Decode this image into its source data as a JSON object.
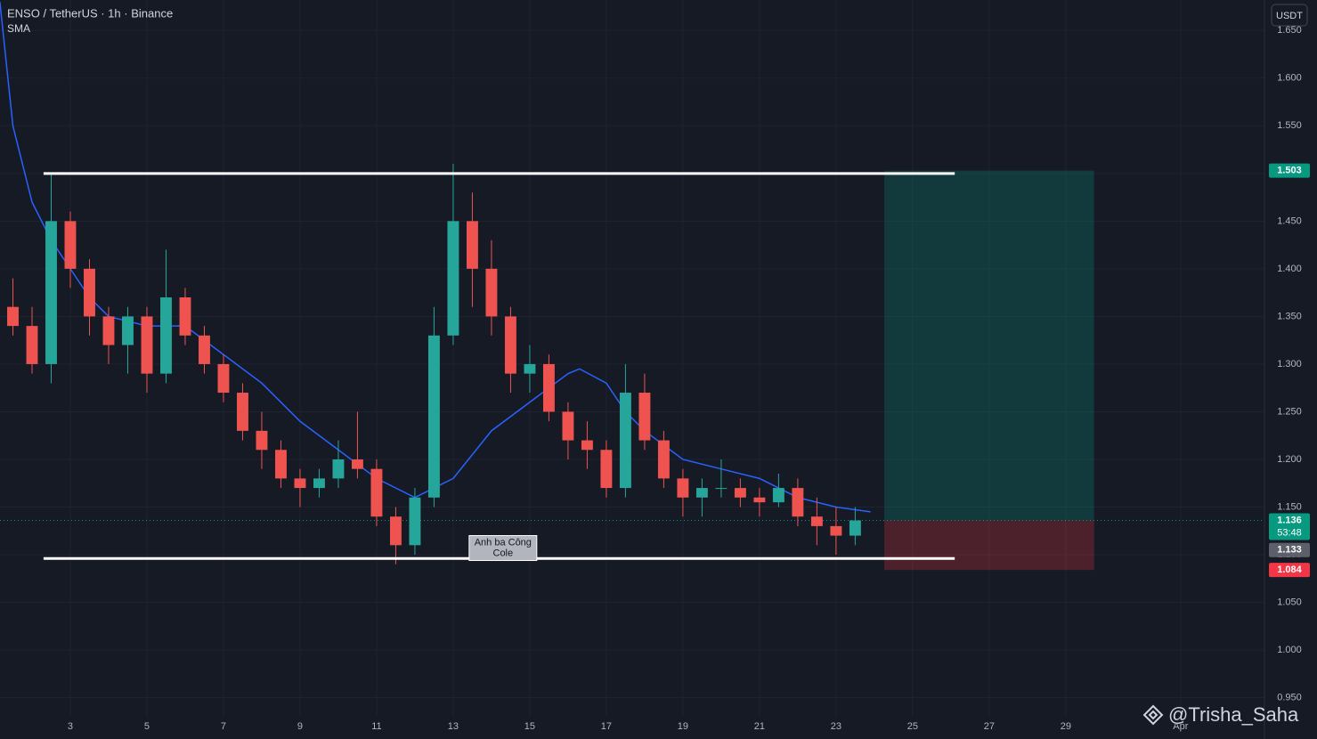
{
  "chart_data": {
    "type": "candlestick",
    "title": "ENSO / TetherUS · 1h · Binance",
    "indicator": "SMA",
    "currency": "USDT",
    "x": [
      1.5,
      2,
      2.5,
      3,
      3.5,
      4,
      4.5,
      5,
      5.5,
      6,
      6.5,
      7,
      7.5,
      8,
      8.5,
      9,
      9.5,
      10,
      10.5,
      11,
      11.5,
      12,
      12.5,
      13,
      13.5,
      14,
      14.5,
      15,
      15.5,
      16,
      16.5,
      17,
      17.5,
      18,
      18.5,
      19,
      19.5,
      20,
      20.5,
      21,
      21.5,
      22,
      22.5,
      23,
      23.5
    ],
    "open": [
      1.36,
      1.34,
      1.3,
      1.45,
      1.4,
      1.35,
      1.32,
      1.35,
      1.29,
      1.37,
      1.33,
      1.3,
      1.27,
      1.23,
      1.21,
      1.18,
      1.17,
      1.18,
      1.2,
      1.19,
      1.14,
      1.11,
      1.16,
      1.33,
      1.45,
      1.4,
      1.35,
      1.29,
      1.3,
      1.25,
      1.22,
      1.21,
      1.17,
      1.27,
      1.22,
      1.18,
      1.16,
      1.17,
      1.17,
      1.16,
      1.155,
      1.17,
      1.14,
      1.13,
      1.12
    ],
    "high": [
      1.39,
      1.36,
      1.5,
      1.46,
      1.41,
      1.36,
      1.36,
      1.36,
      1.42,
      1.38,
      1.34,
      1.31,
      1.28,
      1.25,
      1.22,
      1.19,
      1.19,
      1.22,
      1.25,
      1.2,
      1.15,
      1.17,
      1.36,
      1.51,
      1.48,
      1.43,
      1.36,
      1.32,
      1.31,
      1.26,
      1.24,
      1.22,
      1.3,
      1.29,
      1.23,
      1.19,
      1.18,
      1.2,
      1.18,
      1.17,
      1.185,
      1.18,
      1.16,
      1.15,
      1.15
    ],
    "low": [
      1.33,
      1.29,
      1.28,
      1.38,
      1.33,
      1.3,
      1.29,
      1.27,
      1.28,
      1.32,
      1.29,
      1.26,
      1.22,
      1.19,
      1.17,
      1.15,
      1.16,
      1.17,
      1.18,
      1.13,
      1.09,
      1.1,
      1.15,
      1.32,
      1.36,
      1.33,
      1.27,
      1.27,
      1.24,
      1.2,
      1.19,
      1.16,
      1.16,
      1.21,
      1.17,
      1.14,
      1.14,
      1.16,
      1.15,
      1.14,
      1.15,
      1.13,
      1.11,
      1.1,
      1.11
    ],
    "close": [
      1.34,
      1.3,
      1.45,
      1.4,
      1.35,
      1.32,
      1.35,
      1.29,
      1.37,
      1.33,
      1.3,
      1.27,
      1.23,
      1.21,
      1.18,
      1.17,
      1.18,
      1.2,
      1.19,
      1.14,
      1.11,
      1.16,
      1.33,
      1.45,
      1.4,
      1.35,
      1.29,
      1.3,
      1.25,
      1.22,
      1.21,
      1.17,
      1.27,
      1.22,
      1.18,
      1.16,
      1.17,
      1.17,
      1.16,
      1.155,
      1.17,
      1.14,
      1.13,
      1.12,
      1.136
    ],
    "up_color": "#26a69a",
    "down_color": "#ef5350",
    "sma": {
      "color": "#2962ff",
      "x": [
        1.16,
        1.5,
        2,
        2.5,
        3,
        3.5,
        4,
        5,
        6,
        7,
        8,
        9,
        10,
        11,
        12,
        12.5,
        13,
        14,
        15,
        16,
        16.3,
        17,
        17.5,
        18,
        19,
        20,
        21,
        22,
        23,
        23.9
      ],
      "values": [
        1.68,
        1.55,
        1.47,
        1.43,
        1.4,
        1.37,
        1.35,
        1.34,
        1.34,
        1.31,
        1.28,
        1.24,
        1.21,
        1.18,
        1.16,
        1.17,
        1.18,
        1.23,
        1.26,
        1.29,
        1.295,
        1.28,
        1.25,
        1.23,
        1.2,
        1.19,
        1.18,
        1.16,
        1.15,
        1.145
      ]
    },
    "xlim": [
      1.163,
      34.19
    ],
    "ylim": [
      0.93,
      1.682
    ],
    "xticks": [
      3,
      5,
      7,
      9,
      11,
      13,
      15,
      17,
      19,
      21,
      23,
      25,
      27,
      29,
      {
        "value": 32,
        "label": "Apr"
      }
    ],
    "yticks": [
      {
        "value": 0.95,
        "label": "0.950"
      },
      {
        "value": 1.0,
        "label": "1.000"
      },
      {
        "value": 1.05,
        "label": "1.050"
      },
      {
        "value": 1.1,
        "label": "1.100"
      },
      {
        "value": 1.15,
        "label": "1.150"
      },
      {
        "value": 1.2,
        "label": "1.200"
      },
      {
        "value": 1.25,
        "label": "1.250"
      },
      {
        "value": 1.3,
        "label": "1.300"
      },
      {
        "value": 1.35,
        "label": "1.350"
      },
      {
        "value": 1.4,
        "label": "1.400"
      },
      {
        "value": 1.45,
        "label": "1.450"
      },
      {
        "value": 1.5,
        "label": "1.500"
      },
      {
        "value": 1.55,
        "label": "1.550"
      },
      {
        "value": 1.6,
        "label": "1.600"
      },
      {
        "value": 1.65,
        "label": "1.650"
      }
    ],
    "grid": true,
    "levels": [
      {
        "value": 1.5,
        "x": [
          2.3,
          26.1
        ]
      },
      {
        "value": 1.096,
        "x": [
          2.3,
          26.1
        ]
      }
    ],
    "position": {
      "x": [
        24.26,
        29.74
      ],
      "target": 1.503,
      "entry": 1.136,
      "stop": 1.084
    },
    "price_tags": [
      {
        "value": 1.503,
        "label": "1.503",
        "color": "#089981"
      },
      {
        "value": 1.136,
        "label": "1.136",
        "color": "#089981"
      },
      {
        "value": 1.133,
        "label": "1.133",
        "color": "#5d606b"
      },
      {
        "value": 1.084,
        "label": "1.084",
        "color": "#f23645"
      }
    ],
    "countdown": "53:48",
    "note": {
      "lines": [
        "Anh ba Công",
        "Cole"
      ],
      "x": 14.3,
      "y": 1.107
    },
    "watermark": "@Trisha_Saha"
  }
}
